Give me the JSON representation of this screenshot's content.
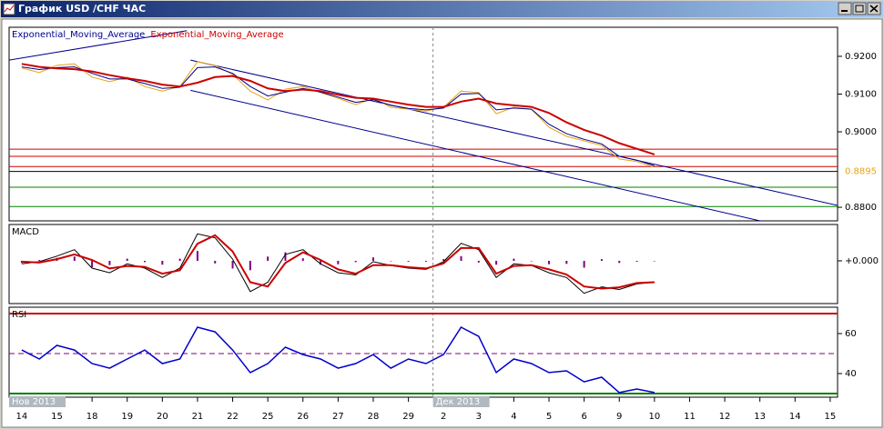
{
  "window": {
    "title": "График USD /CHF ЧАС"
  },
  "x_axis": {
    "xlim": [
      -0.36,
      23.21
    ],
    "xticks": [
      {
        "value": 0,
        "label": "14"
      },
      {
        "value": 1,
        "label": "15"
      },
      {
        "value": 2,
        "label": "18"
      },
      {
        "value": 3,
        "label": "19"
      },
      {
        "value": 4,
        "label": "20"
      },
      {
        "value": 5,
        "label": "21"
      },
      {
        "value": 6,
        "label": "22"
      },
      {
        "value": 7,
        "label": "25"
      },
      {
        "value": 8,
        "label": "26"
      },
      {
        "value": 9,
        "label": "27"
      },
      {
        "value": 10,
        "label": "28"
      },
      {
        "value": 11,
        "label": "29"
      },
      {
        "value": 12,
        "label": "2"
      },
      {
        "value": 13,
        "label": "3"
      },
      {
        "value": 14,
        "label": "4"
      },
      {
        "value": 15,
        "label": "5"
      },
      {
        "value": 16,
        "label": "6"
      },
      {
        "value": 17,
        "label": "9"
      },
      {
        "value": 18,
        "label": "10"
      },
      {
        "value": 19,
        "label": "11"
      },
      {
        "value": 20,
        "label": "12"
      },
      {
        "value": 21,
        "label": "13"
      },
      {
        "value": 22,
        "label": "14"
      },
      {
        "value": 23,
        "label": "15"
      }
    ],
    "periods": [
      {
        "value": -0.36,
        "label": "Нов 2013"
      },
      {
        "value": 11.7,
        "label": "Дек 2013"
      }
    ]
  },
  "chart_data": [
    {
      "type": "line",
      "x": [
        0,
        0.5,
        1,
        1.5,
        2,
        2.5,
        3,
        3.5,
        4,
        4.5,
        5,
        5.5,
        6,
        6.5,
        7,
        7.5,
        8,
        8.5,
        9,
        9.5,
        10,
        10.5,
        11,
        11.5,
        12,
        12.5,
        13,
        13.5,
        14,
        14.5,
        15,
        15.5,
        16,
        16.5,
        17,
        17.5,
        18
      ],
      "series": [
        {
          "color": "#e8a317",
          "values": [
            0.9169,
            0.9157,
            0.9176,
            0.918,
            0.9145,
            0.9133,
            0.9145,
            0.912,
            0.9108,
            0.912,
            0.9186,
            0.9176,
            0.9152,
            0.9108,
            0.9084,
            0.9113,
            0.912,
            0.9104,
            0.9089,
            0.9072,
            0.9089,
            0.9065,
            0.906,
            0.9055,
            0.9065,
            0.9108,
            0.9104,
            0.9048,
            0.9065,
            0.906,
            0.9012,
            0.8988,
            0.8976,
            0.8964,
            0.8928,
            0.8921,
            0.8906
          ]
        },
        {
          "name": "Exponential_Moving_Average",
          "color": "#00008b",
          "values": [
            0.9172,
            0.9165,
            0.917,
            0.9172,
            0.9155,
            0.914,
            0.914,
            0.9128,
            0.9115,
            0.9118,
            0.917,
            0.9172,
            0.9155,
            0.912,
            0.9095,
            0.9105,
            0.9115,
            0.9105,
            0.9092,
            0.9078,
            0.9085,
            0.907,
            0.9062,
            0.9058,
            0.9063,
            0.91,
            0.9102,
            0.9058,
            0.9063,
            0.906,
            0.902,
            0.8995,
            0.898,
            0.8968,
            0.8935,
            0.8925,
            0.891
          ]
        },
        {
          "name": "Exponential_Moving_Average",
          "color": "#cc0000",
          "values": [
            0.918,
            0.9172,
            0.9168,
            0.9166,
            0.916,
            0.915,
            0.9142,
            0.9135,
            0.9125,
            0.912,
            0.913,
            0.9145,
            0.9148,
            0.9135,
            0.9115,
            0.9108,
            0.9112,
            0.9108,
            0.9098,
            0.909,
            0.9088,
            0.908,
            0.9072,
            0.9066,
            0.9066,
            0.908,
            0.9088,
            0.9075,
            0.907,
            0.9066,
            0.905,
            0.9025,
            0.9005,
            0.899,
            0.897,
            0.8955,
            0.894
          ]
        }
      ],
      "ylim": [
        0.8764,
        0.9277
      ],
      "yticks": [
        {
          "value": 0.92,
          "label": "0.9200"
        },
        {
          "value": 0.91,
          "label": "0.9100"
        },
        {
          "value": 0.9,
          "label": "0.9000"
        },
        {
          "value": 0.88,
          "label": "0.8800"
        }
      ],
      "hlines": [
        {
          "value": 0.8954,
          "color": "#cc0000"
        },
        {
          "value": 0.8935,
          "color": "#cc0000"
        },
        {
          "value": 0.8908,
          "color": "#cc0000"
        },
        {
          "value": 0.8895,
          "color": "#000000"
        },
        {
          "value": 0.8853,
          "color": "#008000"
        },
        {
          "value": 0.8802,
          "color": "#008000"
        }
      ],
      "trendlines": [
        {
          "color": "#00008b",
          "x": [
            -0.36,
            4.7
          ],
          "y": [
            0.919,
            0.9268
          ]
        },
        {
          "color": "#00008b",
          "x": [
            4.8,
            23.21
          ],
          "y": [
            0.919,
            0.8805
          ]
        },
        {
          "color": "#00008b",
          "x": [
            4.8,
            21.1
          ],
          "y": [
            0.911,
            0.8762
          ]
        }
      ],
      "last_price": 0.8895
    },
    {
      "type": "line",
      "title": "MACD",
      "x": [
        0,
        0.5,
        1,
        1.5,
        2,
        2.5,
        3,
        3.5,
        4,
        4.5,
        5,
        5.5,
        6,
        6.5,
        7,
        7.5,
        8,
        8.5,
        9,
        9.5,
        10,
        10.5,
        11,
        11.5,
        12,
        12.5,
        13,
        13.5,
        14,
        14.5,
        15,
        15.5,
        16,
        16.5,
        17,
        17.5,
        18
      ],
      "series": [
        {
          "kind": "bar",
          "color": "#800080",
          "values": [
            -5e-05,
            2e-05,
            7e-05,
            0.0001,
            -0.00015,
            -0.0001,
            5e-05,
            -3e-05,
            -9e-05,
            5e-05,
            0.00023,
            -6e-05,
            -0.00018,
            -0.00022,
            0.0001,
            0.0002,
            6e-05,
            -9e-05,
            -8e-05,
            -3e-05,
            8e-05,
            -1e-05,
            -2e-05,
            -2e-05,
            4e-05,
            0.00011,
            -4e-05,
            -9e-05,
            5e-05,
            -1e-05,
            -8e-05,
            -7e-05,
            -0.00016,
            4e-05,
            -5e-05,
            -2e-05,
            0
          ]
        },
        {
          "color": "#000000",
          "values": [
            -7e-05,
            -2e-05,
            0.00011,
            0.00026,
            -0.00017,
            -0.00028,
            -7e-05,
            -0.00017,
            -0.00039,
            -0.00017,
            0.00063,
            0.00054,
            4e-05,
            -0.00072,
            -0.0005,
            0.00015,
            0.00026,
            -7e-05,
            -0.00028,
            -0.00033,
            -2e-05,
            -0.00011,
            -0.00017,
            -0.0002,
            -2e-05,
            0.00041,
            0.00026,
            -0.00039,
            -7e-05,
            -0.00011,
            -0.00028,
            -0.00039,
            -0.00076,
            -0.00061,
            -0.00067,
            -0.00054,
            -0.0005
          ]
        },
        {
          "color": "#cc0000",
          "values": [
            -2e-05,
            -4e-05,
            4e-05,
            0.00015,
            2e-05,
            -0.00018,
            -0.00012,
            -0.00014,
            -0.0003,
            -0.00022,
            0.0004,
            0.0006,
            0.00022,
            -0.0005,
            -0.0006,
            -5e-05,
            0.0002,
            2e-05,
            -0.0002,
            -0.0003,
            -0.0001,
            -0.0001,
            -0.00015,
            -0.00018,
            -6e-05,
            0.0003,
            0.0003,
            -0.0003,
            -0.00012,
            -0.0001,
            -0.0002,
            -0.00032,
            -0.0006,
            -0.00065,
            -0.00062,
            -0.00052,
            -0.0005
          ]
        }
      ],
      "ylim": [
        -0.001,
        0.00085
      ],
      "yticks": [
        {
          "value": 0,
          "label": "+0.000"
        }
      ]
    },
    {
      "type": "line",
      "title": "RSI",
      "x": [
        0,
        0.5,
        1,
        1.5,
        2,
        2.5,
        3,
        3.5,
        4,
        4.5,
        5,
        5.5,
        6,
        6.5,
        7,
        7.5,
        8,
        8.5,
        9,
        9.5,
        10,
        10.5,
        11,
        11.5,
        12,
        12.5,
        13,
        13.5,
        14,
        14.5,
        15,
        15.5,
        16,
        16.5,
        17,
        17.5,
        18
      ],
      "series": [
        {
          "color": "#0000cc",
          "values": [
            51.8,
            47.3,
            54.1,
            51.8,
            45,
            42.7,
            47.3,
            51.8,
            45,
            47.3,
            63.2,
            60.9,
            51.8,
            40.5,
            45,
            53.2,
            49.5,
            47.3,
            42.7,
            45,
            49.5,
            42.7,
            47.3,
            45,
            49.5,
            63.2,
            58.6,
            40.5,
            47.3,
            45,
            40.5,
            41.4,
            35.9,
            38.2,
            30.5,
            32.3,
            30.5
          ]
        }
      ],
      "ylim": [
        28.2,
        73.2
      ],
      "yticks": [
        60,
        40
      ],
      "hlines": [
        {
          "value": 70,
          "color": "#cc0000"
        },
        {
          "value": 50,
          "color": "#800080",
          "dash": true
        },
        {
          "value": 30,
          "color": "#008000"
        }
      ]
    }
  ]
}
